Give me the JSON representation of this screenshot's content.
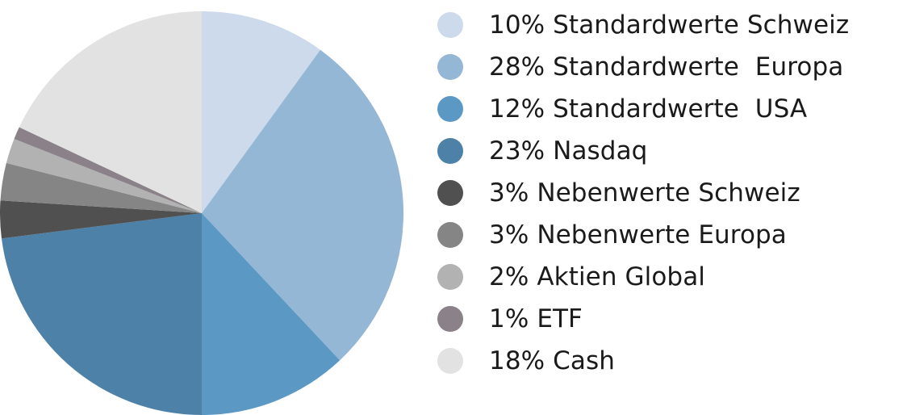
{
  "chart_data": {
    "type": "pie",
    "start": "top, clockwise",
    "slices": [
      {
        "label": "10% Standardwerte Schweiz",
        "value": 10,
        "color": "#ccdaeb"
      },
      {
        "label": "28% Standardwerte  Europa",
        "value": 28,
        "color": "#95b7d6"
      },
      {
        "label": "12% Standardwerte  USA",
        "value": 12,
        "color": "#5b98c4"
      },
      {
        "label": "23% Nasdaq",
        "value": 23,
        "color": "#4d81a8"
      },
      {
        "label": "3% Nebenwerte Schweiz",
        "value": 3,
        "color": "#505050"
      },
      {
        "label": "3% Nebenwerte Europa",
        "value": 3,
        "color": "#858585"
      },
      {
        "label": "2% Aktien Global",
        "value": 2,
        "color": "#b2b2b2"
      },
      {
        "label": "1% ETF",
        "value": 1,
        "color": "#8a8189"
      },
      {
        "label": "18% Cash",
        "value": 18,
        "color": "#e2e2e2"
      }
    ],
    "legend": "right"
  }
}
